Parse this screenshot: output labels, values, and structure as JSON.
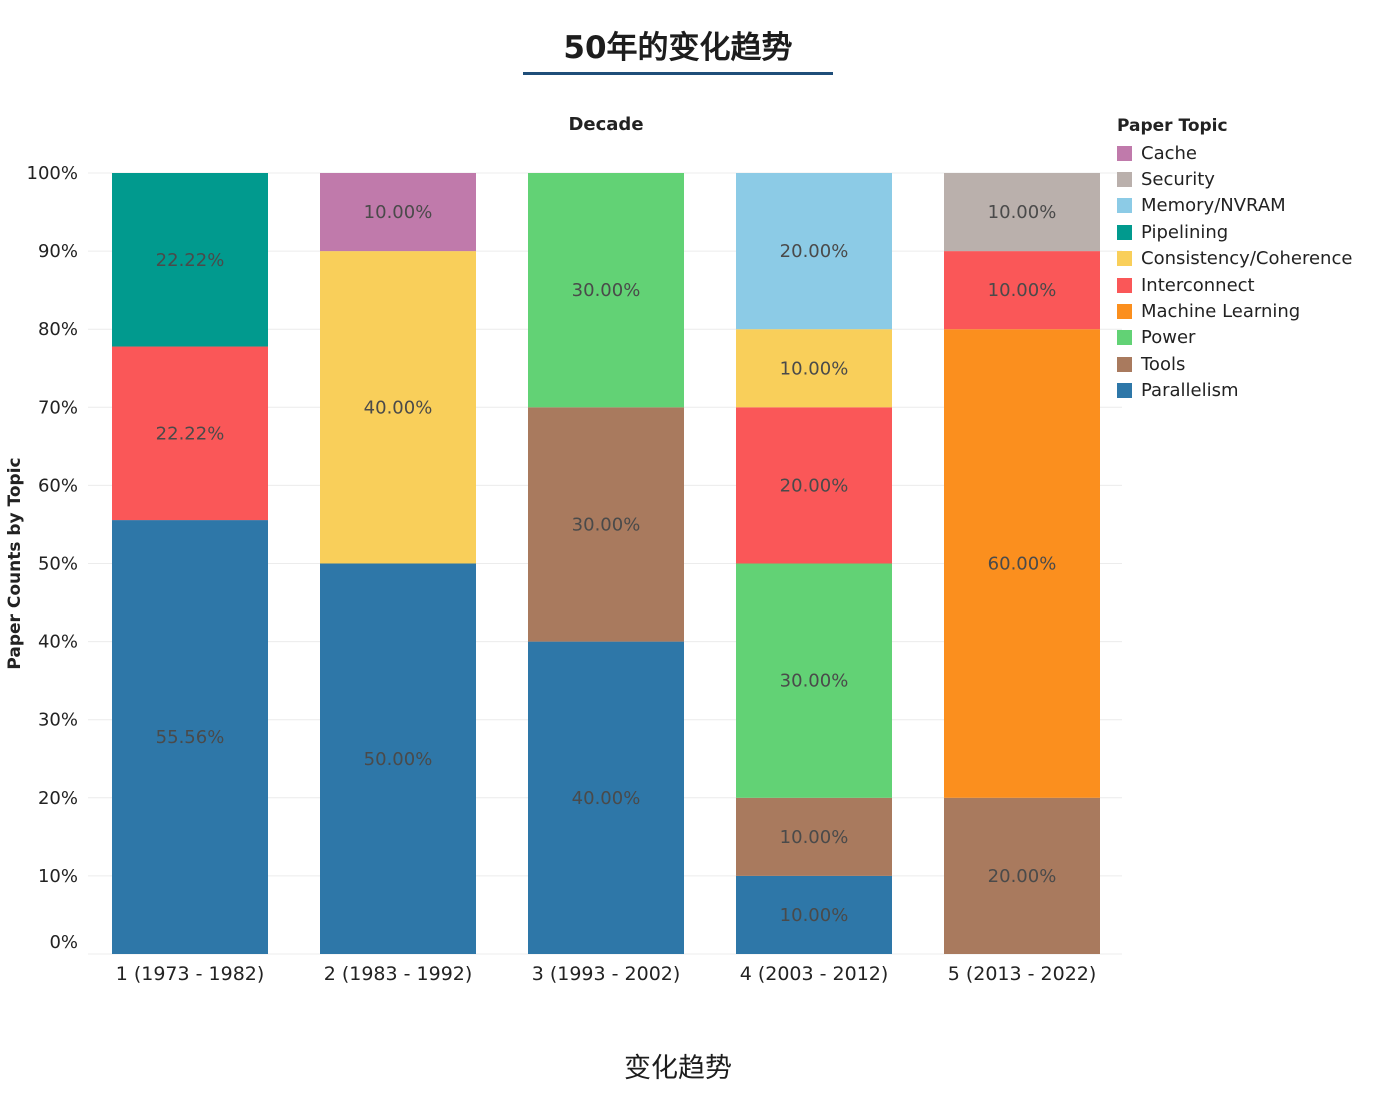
{
  "page": {
    "title": "50年的变化趋势",
    "caption": "变化趋势"
  },
  "chart_data": {
    "type": "bar",
    "stacked": true,
    "normalized": true,
    "title": "Decade",
    "xlabel": "",
    "ylabel": "Paper Counts by Topic",
    "ylim": [
      0,
      100
    ],
    "y_ticks": [
      "0%",
      "10%",
      "20%",
      "30%",
      "40%",
      "50%",
      "60%",
      "70%",
      "80%",
      "90%",
      "100%"
    ],
    "grid": true,
    "legend_position": "right",
    "legend_title": "Paper Topic",
    "categories": [
      "1 (1973 - 1982)",
      "2 (1983 - 1992)",
      "3 (1993 - 2002)",
      "4 (2003 - 2012)",
      "5 (2013 - 2022)"
    ],
    "series": [
      {
        "name": "Cache",
        "color": "#c07aab",
        "values": [
          0,
          10,
          0,
          0,
          0
        ],
        "labels": [
          "",
          "10.00%",
          "",
          "",
          ""
        ]
      },
      {
        "name": "Security",
        "color": "#bab0ac",
        "values": [
          0,
          0,
          0,
          0,
          10
        ],
        "labels": [
          "",
          "",
          "",
          "",
          "10.00%"
        ]
      },
      {
        "name": "Memory/NVRAM",
        "color": "#8ccbe6",
        "values": [
          0,
          0,
          0,
          20,
          0
        ],
        "labels": [
          "",
          "",
          "",
          "20.00%",
          ""
        ]
      },
      {
        "name": "Pipelining",
        "color": "#019a8e",
        "values": [
          22.22,
          0,
          0,
          0,
          0
        ],
        "labels": [
          "22.22%",
          "",
          "",
          "",
          ""
        ]
      },
      {
        "name": "Consistency/Coherence",
        "color": "#f9cf5a",
        "values": [
          0,
          40,
          0,
          10,
          0
        ],
        "labels": [
          "",
          "40.00%",
          "",
          "10.00%",
          ""
        ]
      },
      {
        "name": "Interconnect",
        "color": "#fa5758",
        "values": [
          22.22,
          0,
          0,
          20,
          10
        ],
        "labels": [
          "22.22%",
          "",
          "",
          "20.00%",
          "10.00%"
        ]
      },
      {
        "name": "Machine Learning",
        "color": "#fb8f1e",
        "values": [
          0,
          0,
          0,
          0,
          60
        ],
        "labels": [
          "",
          "",
          "",
          "",
          "60.00%"
        ]
      },
      {
        "name": "Power",
        "color": "#62d275",
        "values": [
          0,
          0,
          30,
          30,
          0
        ],
        "labels": [
          "",
          "",
          "30.00%",
          "30.00%",
          ""
        ]
      },
      {
        "name": "Tools",
        "color": "#a97a5e",
        "values": [
          0,
          0,
          30,
          10,
          20
        ],
        "labels": [
          "",
          "",
          "30.00%",
          "10.00%",
          "20.00%"
        ]
      },
      {
        "name": "Parallelism",
        "color": "#2e77a8",
        "values": [
          55.56,
          50,
          40,
          10,
          0
        ],
        "labels": [
          "55.56%",
          "50.00%",
          "40.00%",
          "10.00%",
          ""
        ]
      }
    ]
  }
}
